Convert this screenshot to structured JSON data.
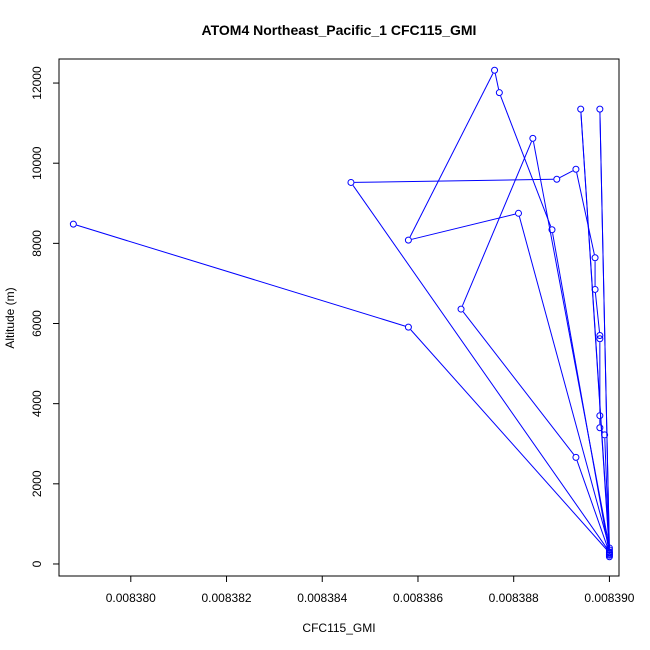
{
  "chart_data": {
    "type": "line",
    "title": "ATOM4 Northeast_Pacific_1 CFC115_GMI",
    "xlabel": "CFC115_GMI",
    "ylabel": "Altitude (m)",
    "xlim": [
      0.0083785,
      0.0083902
    ],
    "ylim": [
      -300,
      12600
    ],
    "x_ticks": [
      0.00838,
      0.008382,
      0.008384,
      0.008386,
      0.008388,
      0.00839
    ],
    "x_tick_labels": [
      "0.008380",
      "0.008382",
      "0.008384",
      "0.008386",
      "0.008388",
      "0.008390"
    ],
    "y_ticks": [
      0,
      2000,
      4000,
      6000,
      8000,
      10000,
      12000
    ],
    "y_tick_labels": [
      "0",
      "2000",
      "4000",
      "6000",
      "8000",
      "10000",
      "12000"
    ],
    "grid": false,
    "line_color": "#0000ff",
    "marker": "open-circle",
    "series": [
      {
        "points": [
          [
            0.00839,
            180
          ],
          [
            0.00839,
            220
          ],
          [
            0.0083899,
            3220
          ],
          [
            0.0083898,
            3400
          ],
          [
            0.0083898,
            3700
          ],
          [
            0.0083898,
            5620
          ],
          [
            0.0083898,
            5700
          ],
          [
            0.0083897,
            6850
          ],
          [
            0.0083897,
            7640
          ],
          [
            0.0083893,
            9850
          ],
          [
            0.0083889,
            9600
          ],
          [
            0.0083846,
            9520
          ],
          [
            0.00839,
            300
          ],
          [
            0.0083898,
            11350
          ],
          [
            0.00839,
            350
          ],
          [
            0.0083894,
            11350
          ],
          [
            0.00839,
            250
          ],
          [
            0.0083888,
            8340
          ],
          [
            0.0083877,
            11760
          ],
          [
            0.0083876,
            12320
          ],
          [
            0.0083858,
            8080
          ],
          [
            0.0083881,
            8750
          ],
          [
            0.00839,
            400
          ],
          [
            0.0083884,
            10620
          ],
          [
            0.0083869,
            6360
          ],
          [
            0.0083893,
            2660
          ],
          [
            0.00839,
            280
          ],
          [
            0.0083858,
            5910
          ],
          [
            0.0083788,
            8480
          ]
        ]
      }
    ]
  }
}
